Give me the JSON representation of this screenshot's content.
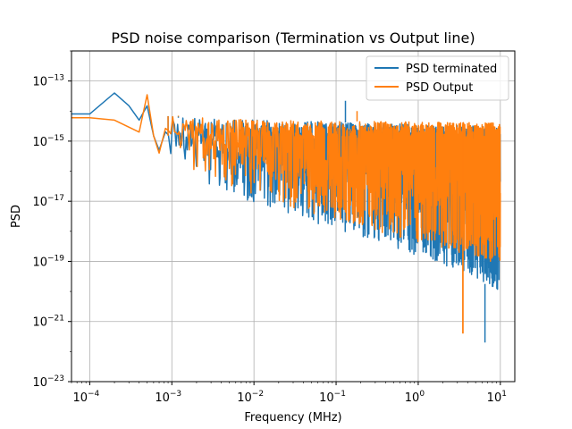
{
  "chart_data": {
    "type": "line",
    "title": "PSD noise comparison (Termination vs Output line)",
    "xlabel": "Frequency (MHz)",
    "ylabel": "PSD",
    "xscale": "log",
    "yscale": "log",
    "xlim": [
      6e-05,
      15
    ],
    "ylim": [
      1e-23,
      1e-12
    ],
    "x_ticks": [
      {
        "value": 0.0001,
        "base": "10",
        "exp": "−4"
      },
      {
        "value": 0.001,
        "base": "10",
        "exp": "−3"
      },
      {
        "value": 0.01,
        "base": "10",
        "exp": "−2"
      },
      {
        "value": 0.1,
        "base": "10",
        "exp": "−1"
      },
      {
        "value": 1,
        "base": "10",
        "exp": "0"
      },
      {
        "value": 10,
        "base": "10",
        "exp": "1"
      }
    ],
    "y_ticks": [
      {
        "value": 1e-23,
        "base": "10",
        "exp": "−23"
      },
      {
        "value": 1e-21,
        "base": "10",
        "exp": "−21"
      },
      {
        "value": 1e-19,
        "base": "10",
        "exp": "−19"
      },
      {
        "value": 1e-17,
        "base": "10",
        "exp": "−17"
      },
      {
        "value": 1e-15,
        "base": "10",
        "exp": "−15"
      },
      {
        "value": 1e-13,
        "base": "10",
        "exp": "−13"
      }
    ],
    "grid": true,
    "legend_position": "top-right",
    "series": [
      {
        "name": "PSD terminated",
        "color": "#1f77b4",
        "anchor_points": [
          {
            "x": 6e-05,
            "y": 8e-15
          },
          {
            "x": 0.0001,
            "y": 8e-15
          },
          {
            "x": 0.0002,
            "y": 4e-14
          },
          {
            "x": 0.0003,
            "y": 1.5e-14
          },
          {
            "x": 0.0004,
            "y": 5e-15
          },
          {
            "x": 0.0005,
            "y": 1.5e-14
          },
          {
            "x": 0.0006,
            "y": 1.5e-15
          },
          {
            "x": 0.0007,
            "y": 5e-16
          },
          {
            "x": 0.0009,
            "y": 2e-15
          },
          {
            "x": 0.0012,
            "y": 6e-15
          },
          {
            "x": 0.13,
            "y": 2.2e-14
          }
        ],
        "noise_band": {
          "x_start": 0.0007,
          "x_end": 10,
          "upper": [
            {
              "x": 0.0007,
              "y": 7e-15
            },
            {
              "x": 0.01,
              "y": 5e-15
            },
            {
              "x": 10,
              "y": 3e-15
            }
          ],
          "lower": [
            {
              "x": 0.0007,
              "y": 4e-16
            },
            {
              "x": 0.003,
              "y": 3e-17
            },
            {
              "x": 0.03,
              "y": 3e-18
            },
            {
              "x": 0.3,
              "y": 5e-19
            },
            {
              "x": 3,
              "y": 5e-20
            },
            {
              "x": 10,
              "y": 1e-20
            }
          ],
          "extreme_min": {
            "x": 6.5,
            "y": 2e-22
          }
        }
      },
      {
        "name": "PSD Output",
        "color": "#ff7f0e",
        "anchor_points": [
          {
            "x": 6e-05,
            "y": 6e-15
          },
          {
            "x": 0.0001,
            "y": 6e-15
          },
          {
            "x": 0.0002,
            "y": 5e-15
          },
          {
            "x": 0.0004,
            "y": 2e-15
          },
          {
            "x": 0.0005,
            "y": 3.5e-14
          },
          {
            "x": 0.0006,
            "y": 1.5e-15
          },
          {
            "x": 0.0007,
            "y": 4e-16
          },
          {
            "x": 0.0009,
            "y": 1.5e-15
          },
          {
            "x": 0.0012,
            "y": 7e-15
          },
          {
            "x": 0.18,
            "y": 1e-14
          },
          {
            "x": 3.5,
            "y": 4e-22
          }
        ],
        "noise_band": {
          "x_start": 0.0007,
          "x_end": 10,
          "upper": [
            {
              "x": 0.0007,
              "y": 7e-15
            },
            {
              "x": 0.01,
              "y": 5e-15
            },
            {
              "x": 10,
              "y": 4e-15
            }
          ],
          "lower": [
            {
              "x": 0.0007,
              "y": 4e-16
            },
            {
              "x": 0.003,
              "y": 5e-17
            },
            {
              "x": 0.03,
              "y": 6e-18
            },
            {
              "x": 0.3,
              "y": 1e-18
            },
            {
              "x": 3,
              "y": 2e-19
            },
            {
              "x": 10,
              "y": 8e-20
            }
          ],
          "extreme_min": {
            "x": 3.5,
            "y": 4e-22
          }
        }
      }
    ]
  }
}
